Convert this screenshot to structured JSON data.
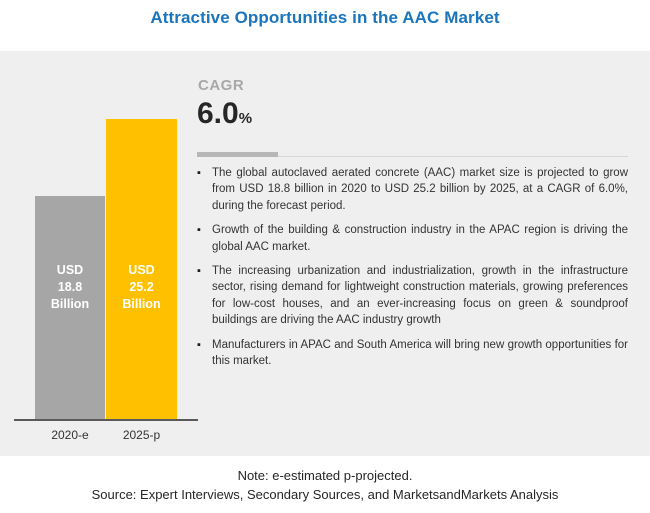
{
  "title": "Attractive Opportunities in the AAC Market",
  "colors": {
    "title_blue": "#1b75bc",
    "panel_background": "#f0efef",
    "bar_2020_gray": "#a6a6a6",
    "bar_2025_gold": "#ffc000",
    "axis_line": "#595959",
    "cagr_label_gray": "#a8a8a8",
    "text_dark": "#262626"
  },
  "cagr": {
    "label": "CAGR",
    "value": "6.0",
    "percent_sign": "%"
  },
  "chart_data": {
    "type": "bar",
    "title": "Attractive Opportunities in the AAC Market",
    "categories": [
      "2020-e",
      "2025-p"
    ],
    "values": [
      18.8,
      25.2
    ],
    "unit": "USD Billion",
    "cagr_percent": 6.0,
    "grid": false,
    "legend": "none",
    "bars": [
      {
        "category": "2020-e",
        "value": 18.8,
        "color": "#a6a6a6",
        "label_lines": [
          "USD",
          "18.8",
          "Billion"
        ]
      },
      {
        "category": "2025-p",
        "value": 25.2,
        "color": "#ffc000",
        "label_lines": [
          "USD",
          "25.2",
          "Billion"
        ]
      }
    ]
  },
  "bullets": [
    "The global autoclaved aerated concrete (AAC) market size is projected to grow from USD 18.8 billion in 2020 to USD 25.2 billion by 2025, at a CAGR of 6.0%, during the forecast period.",
    "Growth of the building & construction industry in the APAC region is driving the global AAC market.",
    "The increasing urbanization and industrialization, growth in the infrastructure sector, rising demand for lightweight construction materials, growing preferences for low-cost houses, and an ever-increasing focus on green & soundproof buildings are driving the AAC industry growth",
    "Manufacturers in APAC and South America will bring new growth opportunities for this market."
  ],
  "note": "Note: e-estimated p-projected.",
  "source": "Source: Expert Interviews, Secondary Sources, and MarketsandMarkets Analysis"
}
